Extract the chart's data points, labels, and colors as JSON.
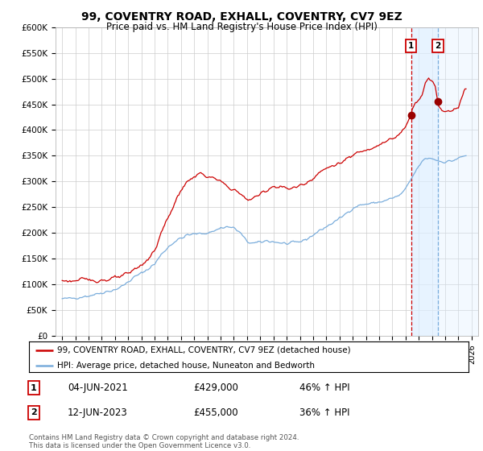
{
  "title": "99, COVENTRY ROAD, EXHALL, COVENTRY, CV7 9EZ",
  "subtitle": "Price paid vs. HM Land Registry's House Price Index (HPI)",
  "ylim": [
    0,
    600000
  ],
  "yticks": [
    0,
    50000,
    100000,
    150000,
    200000,
    250000,
    300000,
    350000,
    400000,
    450000,
    500000,
    550000,
    600000
  ],
  "ytick_labels": [
    "£0",
    "£50K",
    "£100K",
    "£150K",
    "£200K",
    "£250K",
    "£300K",
    "£350K",
    "£400K",
    "£450K",
    "£500K",
    "£550K",
    "£600K"
  ],
  "xlim_start": 1994.5,
  "xlim_end": 2026.5,
  "hpi_color": "#7aaddc",
  "price_color": "#cc0000",
  "marker_color": "#990000",
  "point1_x": 2021.42,
  "point1_y": 429000,
  "point2_x": 2023.45,
  "point2_y": 455000,
  "legend_line1": "99, COVENTRY ROAD, EXHALL, COVENTRY, CV7 9EZ (detached house)",
  "legend_line2": "HPI: Average price, detached house, Nuneaton and Bedworth",
  "footer": "Contains HM Land Registry data © Crown copyright and database right 2024.\nThis data is licensed under the Open Government Licence v3.0.",
  "background_color": "#ffffff",
  "grid_color": "#cccccc",
  "shade_color": "#ddeeff"
}
